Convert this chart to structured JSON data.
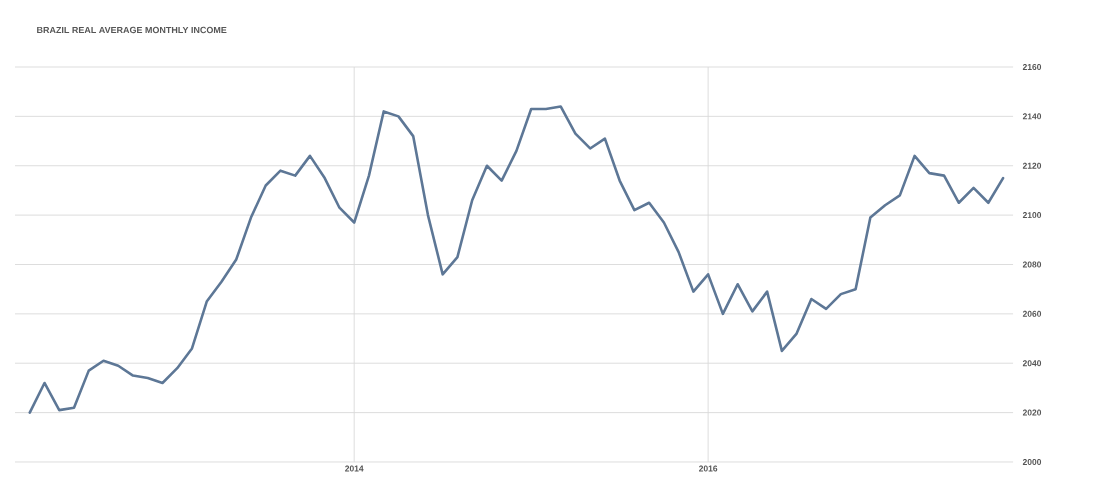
{
  "chart_data": {
    "type": "line",
    "title": "BRAZIL REAL AVERAGE MONTHLY INCOME",
    "x": [
      "2012-03",
      "2012-04",
      "2012-05",
      "2012-06",
      "2012-07",
      "2012-08",
      "2012-09",
      "2012-10",
      "2012-11",
      "2012-12",
      "2013-01",
      "2013-02",
      "2013-03",
      "2013-04",
      "2013-05",
      "2013-06",
      "2013-07",
      "2013-08",
      "2013-09",
      "2013-10",
      "2013-11",
      "2013-12",
      "2014-01",
      "2014-02",
      "2014-03",
      "2014-04",
      "2014-05",
      "2014-06",
      "2014-07",
      "2014-08",
      "2014-09",
      "2014-10",
      "2014-11",
      "2014-12",
      "2015-01",
      "2015-02",
      "2015-03",
      "2015-04",
      "2015-05",
      "2015-06",
      "2015-07",
      "2015-08",
      "2015-09",
      "2015-10",
      "2015-11",
      "2015-12",
      "2016-01",
      "2016-02",
      "2016-03",
      "2016-04",
      "2016-05",
      "2016-06",
      "2016-07",
      "2016-08",
      "2016-09",
      "2016-10",
      "2016-11",
      "2016-12",
      "2017-01",
      "2017-02",
      "2017-03",
      "2017-04",
      "2017-05",
      "2017-06",
      "2017-07",
      "2017-08",
      "2017-09"
    ],
    "series": [
      {
        "color": "#5d7796",
        "values": [
          2020,
          2032,
          2021,
          2022,
          2037,
          2041,
          2039,
          2035,
          2034,
          2032,
          2038,
          2046,
          2065,
          2073,
          2082,
          2099,
          2112,
          2118,
          2116,
          2124,
          2115,
          2103,
          2097,
          2116,
          2142,
          2140,
          2132,
          2100,
          2076,
          2083,
          2106,
          2120,
          2114,
          2126,
          2143,
          2143,
          2144,
          2133,
          2127,
          2131,
          2114,
          2102,
          2105,
          2097,
          2085,
          2069,
          2076,
          2060,
          2072,
          2061,
          2069,
          2045,
          2052,
          2066,
          2062,
          2068,
          2070,
          2099,
          2104,
          2108,
          2124,
          2117,
          2116,
          2105,
          2111,
          2105,
          2115
        ]
      }
    ],
    "xlim": [
      "2012-02-01",
      "2017-09-22"
    ],
    "xticks": [
      {
        "value": "2014",
        "label": "2014"
      },
      {
        "value": "2016",
        "label": "2016"
      }
    ],
    "ylim": [
      2000,
      2160
    ],
    "yticks": [
      2000,
      2020,
      2040,
      2060,
      2080,
      2100,
      2120,
      2140,
      2160
    ],
    "grid": true,
    "marker": "none",
    "line_style": "solid"
  }
}
